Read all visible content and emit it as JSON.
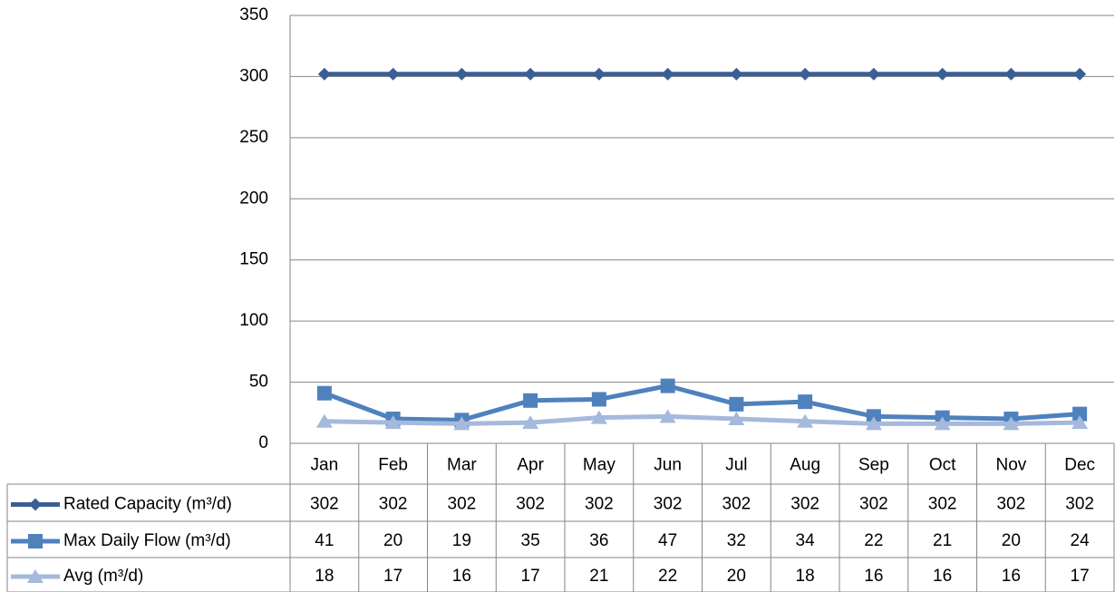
{
  "chart_data": {
    "type": "line",
    "categories": [
      "Jan",
      "Feb",
      "Mar",
      "Apr",
      "May",
      "Jun",
      "Jul",
      "Aug",
      "Sep",
      "Oct",
      "Nov",
      "Dec"
    ],
    "series": [
      {
        "name": "Rated Capacity (m³/d)",
        "color": "#3a5f95",
        "marker": "diamond",
        "values": [
          302,
          302,
          302,
          302,
          302,
          302,
          302,
          302,
          302,
          302,
          302,
          302
        ]
      },
      {
        "name": "Max Daily Flow (m³/d)",
        "color": "#4f81bd",
        "marker": "square",
        "values": [
          41,
          20,
          19,
          35,
          36,
          47,
          32,
          34,
          22,
          21,
          20,
          24
        ]
      },
      {
        "name": "Avg (m³/d)",
        "color": "#a5b9dc",
        "marker": "triangle",
        "values": [
          18,
          17,
          16,
          17,
          21,
          22,
          20,
          18,
          16,
          16,
          16,
          17
        ]
      }
    ],
    "ylim": [
      0,
      350
    ],
    "yticks": [
      0,
      50,
      100,
      150,
      200,
      250,
      300,
      350
    ],
    "grid": true,
    "data_table": true
  }
}
